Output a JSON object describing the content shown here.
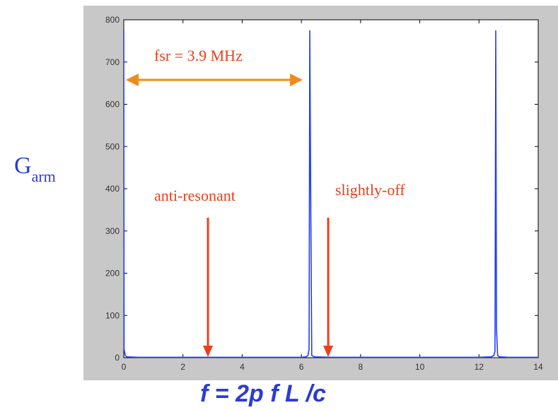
{
  "chart_data": {
    "type": "line",
    "xlim": [
      0,
      14
    ],
    "ylim": [
      0,
      800
    ],
    "xticks": [
      0,
      2,
      4,
      6,
      8,
      10,
      12,
      14
    ],
    "yticks": [
      0,
      100,
      200,
      300,
      400,
      500,
      600,
      700,
      800
    ],
    "ylabel_main": "G",
    "ylabel_sub": "arm",
    "xlabel": "f = 2p f L /c",
    "series": [
      {
        "color": "#1f3bff",
        "x": [
          0,
          0.01,
          0.05,
          0.1,
          0.5,
          1,
          2,
          3,
          4,
          5,
          6,
          6.15,
          6.22,
          6.26,
          6.283,
          6.31,
          6.35,
          6.45,
          7,
          8,
          9,
          10,
          11,
          12,
          12.4,
          12.5,
          12.54,
          12.566,
          12.59,
          12.63,
          12.7,
          13,
          14
        ],
        "y": [
          775,
          20,
          5,
          2,
          1,
          1,
          1,
          1,
          1,
          1,
          1,
          2,
          5,
          20,
          775,
          440,
          5,
          2,
          1,
          1,
          1,
          1,
          1,
          1,
          2,
          5,
          15,
          775,
          70,
          5,
          2,
          1,
          1
        ]
      }
    ],
    "annotations": {
      "fsr": "fsr = 3.9 MHz",
      "anti_resonant": "anti-resonant",
      "slightly_off": "slightly-off"
    }
  }
}
